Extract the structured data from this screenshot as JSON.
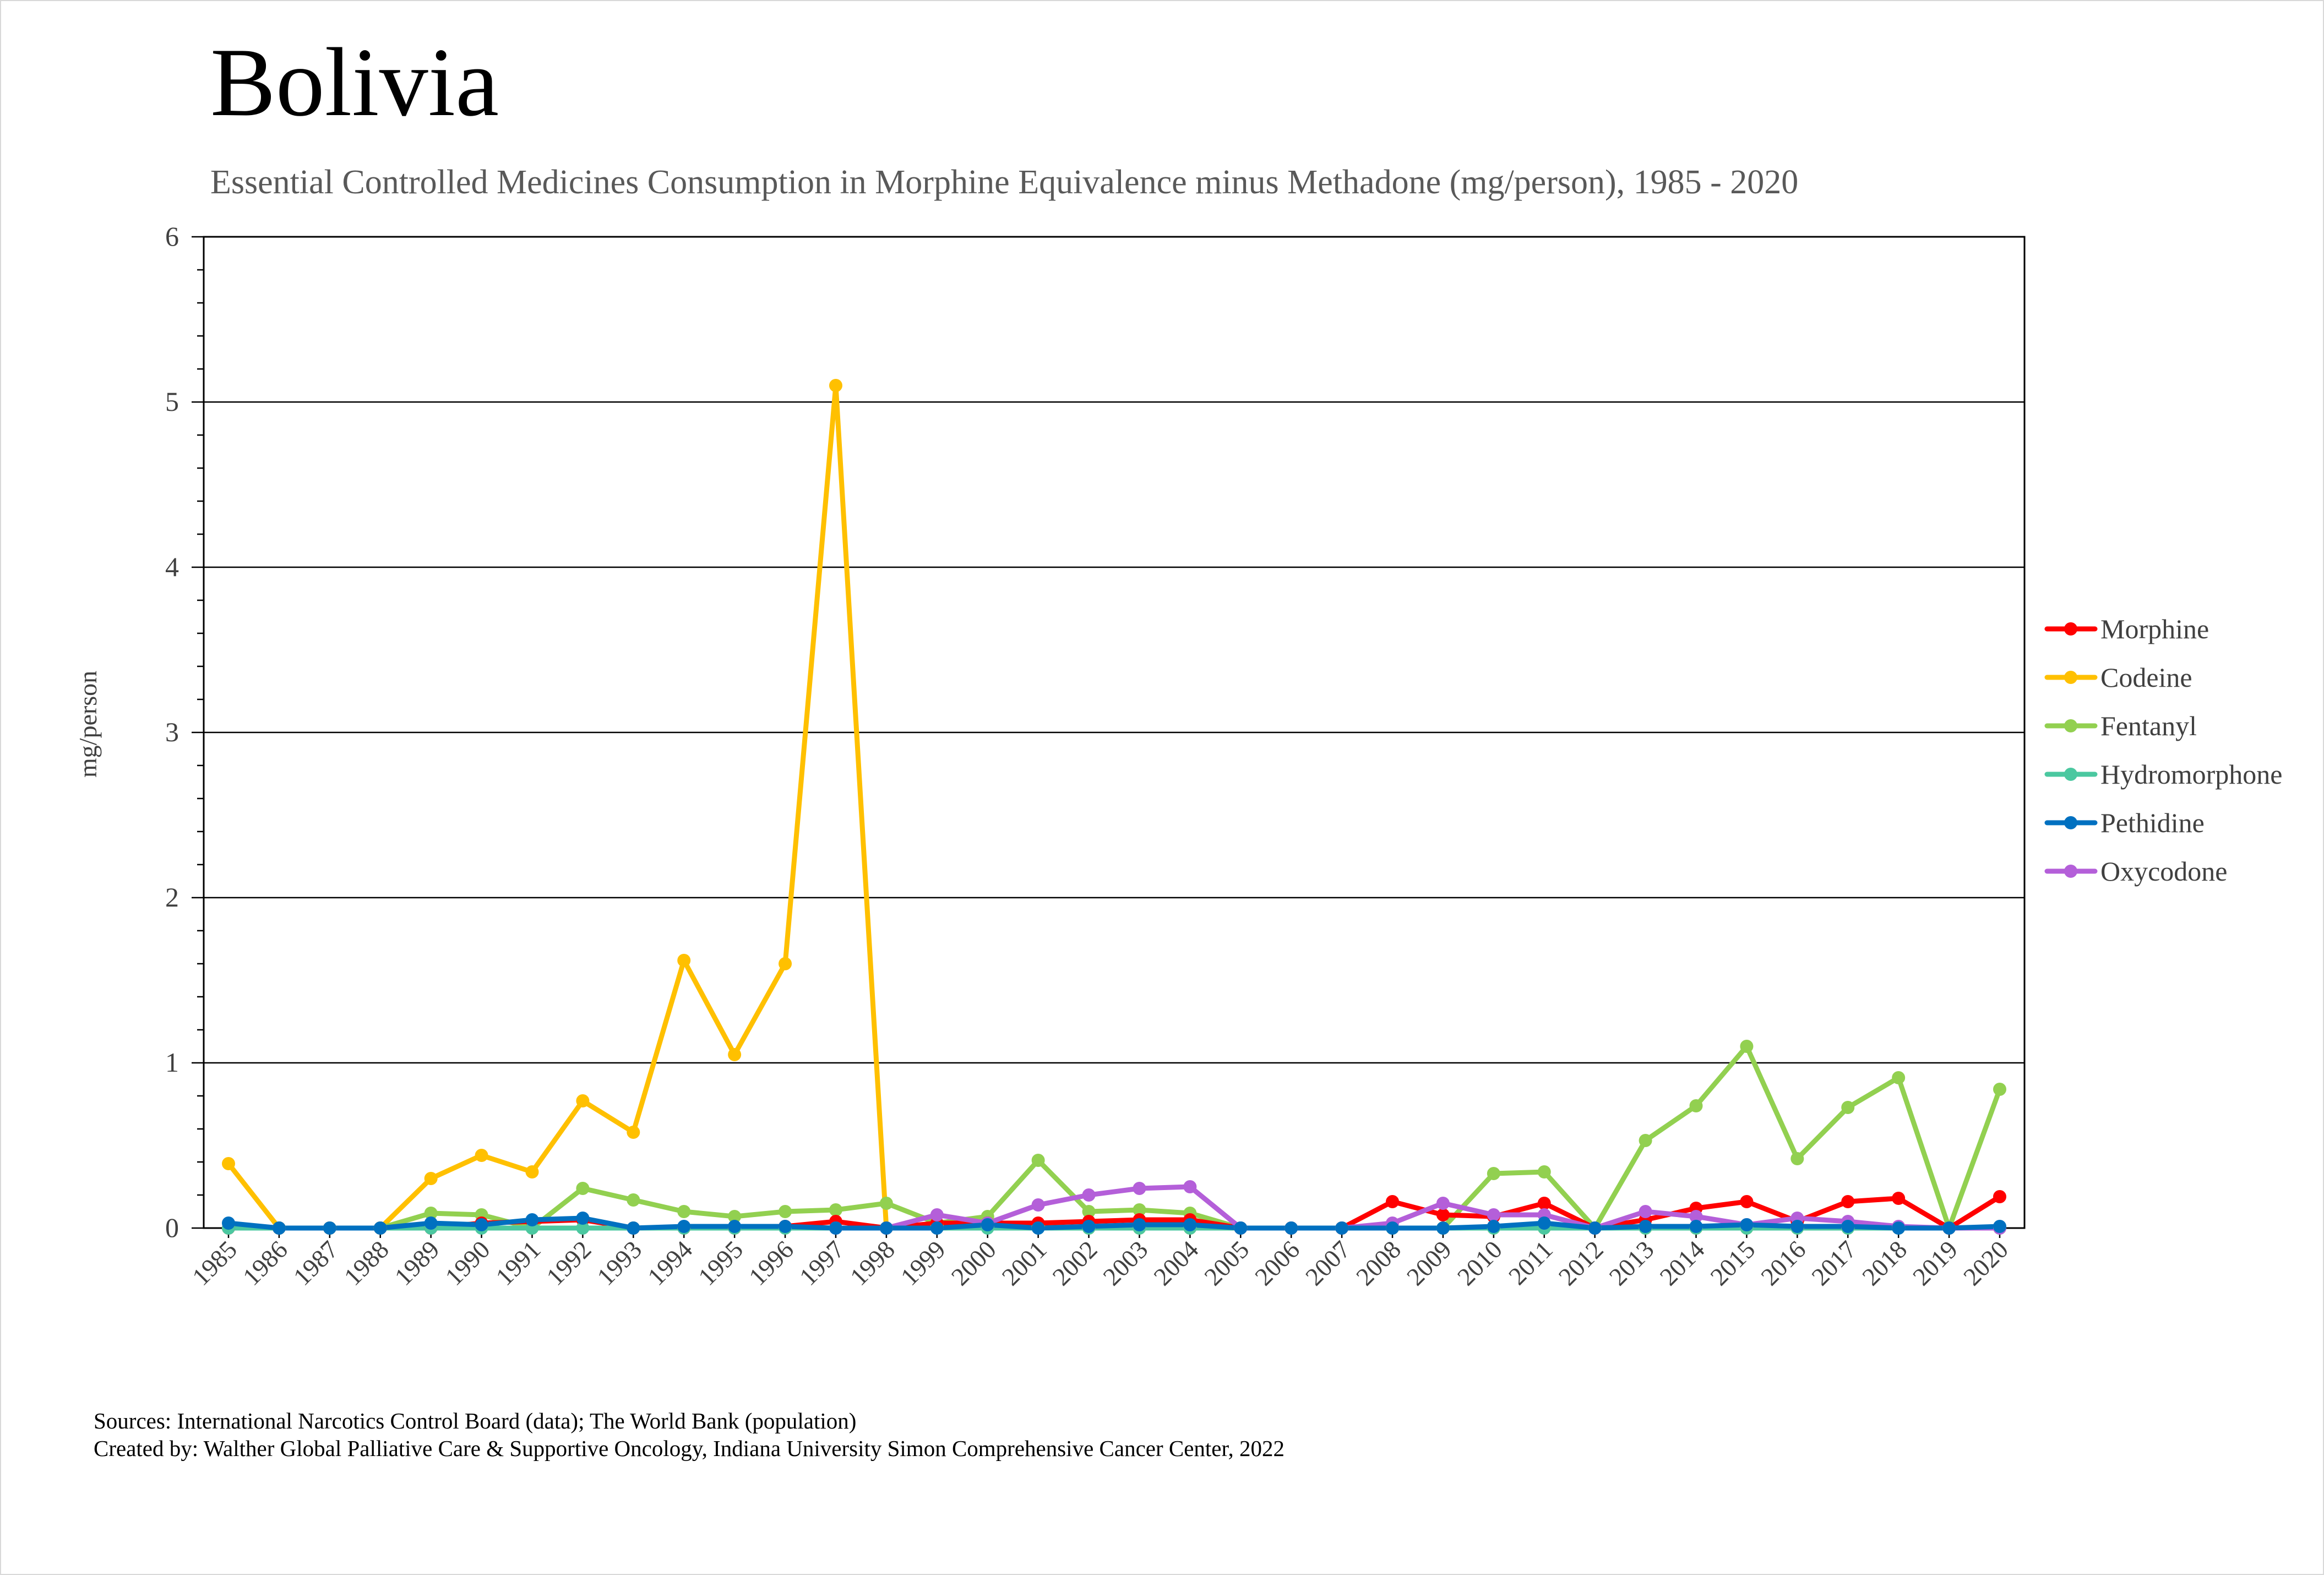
{
  "chart_data": {
    "type": "line",
    "title": "Bolivia",
    "subtitle": "Essential Controlled Medicines Consumption in Morphine Equivalence minus Methadone (mg/person), 1985 - 2020",
    "xlabel": "",
    "ylabel": "mg/person",
    "ylim": [
      0,
      6
    ],
    "yticks": [
      "0",
      "1",
      "2",
      "3",
      "4",
      "5",
      "6"
    ],
    "grid": true,
    "legend_position": "right",
    "categories": [
      "1985",
      "1986",
      "1987",
      "1988",
      "1989",
      "1990",
      "1991",
      "1992",
      "1993",
      "1994",
      "1995",
      "1996",
      "1997",
      "1998",
      "1999",
      "2000",
      "2001",
      "2002",
      "2003",
      "2004",
      "2005",
      "2006",
      "2007",
      "2008",
      "2009",
      "2010",
      "2011",
      "2012",
      "2013",
      "2014",
      "2015",
      "2016",
      "2017",
      "2018",
      "2019",
      "2020"
    ],
    "series": [
      {
        "name": "Morphine",
        "color": "#ff0000",
        "values": [
          0,
          0,
          0,
          0,
          0,
          0.03,
          0.04,
          0.05,
          0,
          0,
          0,
          0.01,
          0.04,
          0,
          0.03,
          0.03,
          0.03,
          0.04,
          0.05,
          0.05,
          0,
          0,
          0,
          0.16,
          0.08,
          0.07,
          0.15,
          0,
          0.05,
          0.12,
          0.16,
          0.04,
          0.16,
          0.18,
          0,
          0.19
        ]
      },
      {
        "name": "Codeine",
        "color": "#ffc000",
        "values": [
          0.39,
          0,
          0,
          0,
          0.3,
          0.44,
          0.34,
          0.77,
          0.58,
          1.62,
          1.05,
          1.6,
          5.1,
          0,
          0.02,
          0.01,
          0.01,
          0,
          0,
          0,
          0,
          0,
          0,
          0,
          0,
          0,
          0,
          0,
          0,
          0,
          0,
          0,
          0,
          0,
          0,
          0
        ]
      },
      {
        "name": "Fentanyl",
        "color": "#92d050",
        "values": [
          0,
          0,
          0,
          0,
          0.09,
          0.08,
          0,
          0.24,
          0.17,
          0.1,
          0.07,
          0.1,
          0.11,
          0.15,
          0.03,
          0.07,
          0.41,
          0.1,
          0.11,
          0.09,
          0,
          0,
          0,
          0,
          0,
          0.33,
          0.34,
          0,
          0.53,
          0.74,
          1.1,
          0.42,
          0.73,
          0.91,
          0,
          0.84
        ]
      },
      {
        "name": "Hydromorphone",
        "color": "#4bc8a0",
        "values": [
          0,
          0,
          0,
          0,
          0,
          0,
          0,
          0,
          0,
          0,
          0,
          0,
          0,
          0,
          0,
          0,
          0,
          0,
          0,
          0,
          0,
          0,
          0,
          0,
          0,
          0,
          0,
          0,
          0,
          0,
          0,
          0,
          0,
          0,
          0,
          0
        ]
      },
      {
        "name": "Pethidine",
        "color": "#0070c0",
        "values": [
          0.03,
          0,
          0,
          0,
          0.03,
          0.02,
          0.05,
          0.06,
          0,
          0.01,
          0.01,
          0.01,
          0,
          0,
          0,
          0.02,
          0,
          0.01,
          0.02,
          0.02,
          0,
          0,
          0,
          0,
          0,
          0.01,
          0.03,
          0,
          0.01,
          0.01,
          0.02,
          0.01,
          0.01,
          0,
          0,
          0.01
        ]
      },
      {
        "name": "Oxycodone",
        "color": "#b45fd9",
        "values": [
          null,
          null,
          null,
          null,
          null,
          null,
          null,
          null,
          null,
          null,
          null,
          null,
          0,
          0,
          0.08,
          0.03,
          0.14,
          0.2,
          0.24,
          0.25,
          0,
          0,
          0,
          0.03,
          0.15,
          0.08,
          0.08,
          0,
          0.1,
          0.07,
          0.02,
          0.06,
          0.04,
          0.01,
          0,
          0
        ]
      }
    ]
  },
  "footer": {
    "sources": "Sources: International Narcotics Control Board (data); The World Bank (population)",
    "created_by": "Created by: Walther Global Palliative Care & Supportive Oncology, Indiana University Simon Comprehensive Cancer Center, 2022"
  }
}
